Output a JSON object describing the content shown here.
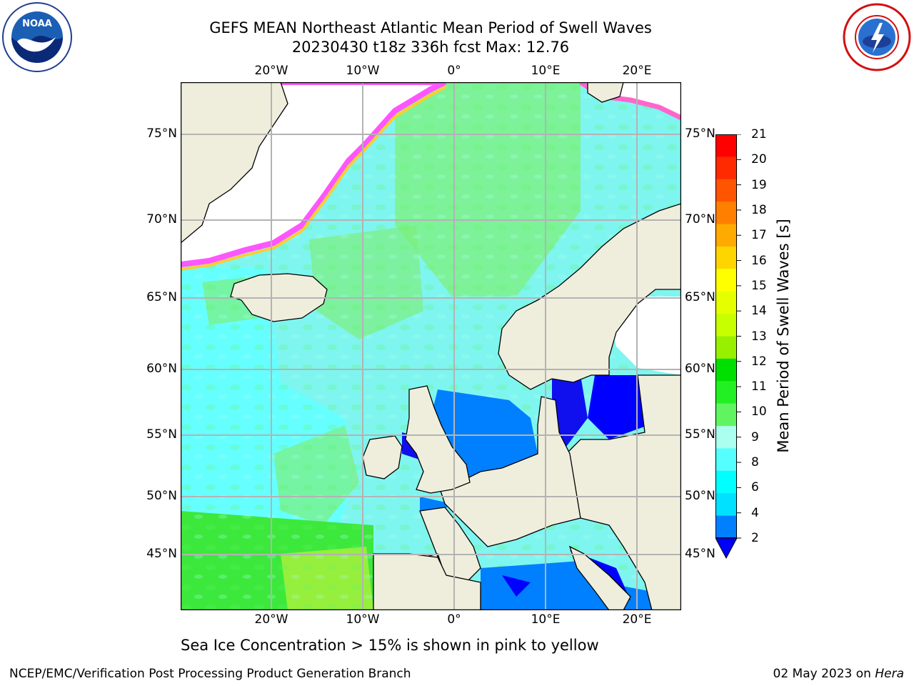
{
  "title": {
    "line1": "GEFS MEAN Northeast Atlantic Mean Period of Swell Waves",
    "line2": "20230430 t18z 336h fcst   Max: 12.76"
  },
  "map": {
    "lon_labels": [
      "20°W",
      "10°W",
      "0°",
      "10°E",
      "20°E"
    ],
    "lat_labels_left": [
      "75°N",
      "70°N",
      "65°N",
      "60°N",
      "55°N",
      "50°N",
      "45°N"
    ],
    "lat_labels_right": [
      "75°N",
      "70°N",
      "65°N",
      "60°N",
      "55°N",
      "50°N",
      "45°N"
    ],
    "colors": {
      "land": "#efeedc",
      "ice_free_white": "#ffffff",
      "grid": "#b3b3b3",
      "coast": "#000000"
    }
  },
  "colorbar": {
    "title": "Mean Period of Swell Waves [s]",
    "tick_labels": [
      "21",
      "20",
      "19",
      "18",
      "17",
      "16",
      "15",
      "14",
      "13",
      "12",
      "11",
      "10",
      "9",
      "8",
      "6",
      "4",
      "2"
    ],
    "colors_top_to_bottom": [
      "#ff0000",
      "#ff2a00",
      "#ff5500",
      "#ff8000",
      "#ffaa00",
      "#ffd500",
      "#ffff00",
      "#e6ff00",
      "#c8ff00",
      "#98f000",
      "#00e000",
      "#22f022",
      "#60f560",
      "#aaffee",
      "#55ffff",
      "#00ffff",
      "#00e0ff",
      "#0080ff"
    ],
    "extend_color": "#0000ff"
  },
  "ice_note": "Sea Ice Concentration > 15% is shown in pink to yellow",
  "footer": {
    "left": "NCEP/EMC/Verification Post Processing Product Generation Branch",
    "right_date": "02 May 2023 on ",
    "right_host": "Hera"
  }
}
